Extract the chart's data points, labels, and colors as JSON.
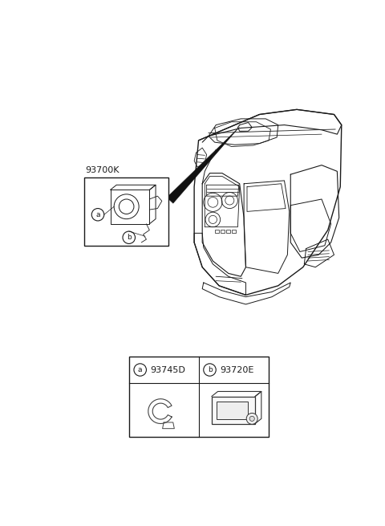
{
  "bg_color": "#ffffff",
  "lc": "#1a1a1a",
  "lc_thin": "#333333",
  "label_93700K": "93700K",
  "label_a": "a",
  "label_b": "b",
  "label_93745D": "93745D",
  "label_93720E": "93720E",
  "figw": 4.8,
  "figh": 6.55,
  "dpi": 100
}
